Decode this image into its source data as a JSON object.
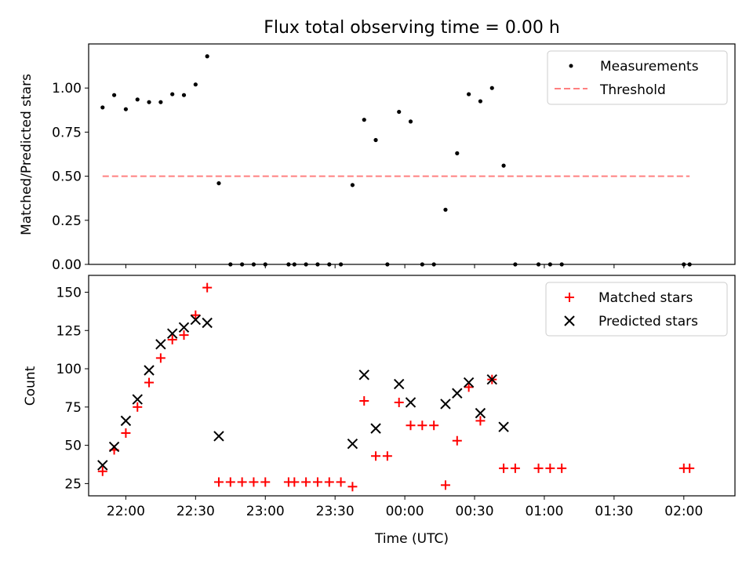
{
  "title": "Flux total observing time = 0.00 h",
  "chart_data": [
    {
      "type": "scatter",
      "ylabel": "Matched/Predicted stars",
      "xlabel": "",
      "xlim": [
        -0.6333,
        1.6833
      ],
      "ylim": [
        0.0,
        1.25
      ],
      "x_ticks": [
        -0.5,
        -0.25,
        0,
        0.25,
        0.5,
        0.75,
        1.0,
        1.25,
        1.5
      ],
      "y_ticks": [
        0.0,
        0.25,
        0.5,
        0.75,
        1.0
      ],
      "y_tick_labels": [
        "0.00",
        "0.25",
        "0.50",
        "0.75",
        "1.00"
      ],
      "legend_position": "top-right",
      "series": [
        {
          "name": "Measurements",
          "marker": "dot",
          "color": "#000000",
          "points": [
            [
              -0.5833,
              0.89
            ],
            [
              -0.5417,
              0.96
            ],
            [
              -0.5,
              0.88
            ],
            [
              -0.4583,
              0.935
            ],
            [
              -0.4167,
              0.92
            ],
            [
              -0.375,
              0.92
            ],
            [
              -0.3333,
              0.965
            ],
            [
              -0.2917,
              0.96
            ],
            [
              -0.25,
              1.02
            ],
            [
              -0.2083,
              1.18
            ],
            [
              -0.1667,
              0.46
            ],
            [
              -0.125,
              0
            ],
            [
              -0.0833,
              0
            ],
            [
              -0.0417,
              0
            ],
            [
              0.0,
              0
            ],
            [
              0.0833,
              0
            ],
            [
              0.1042,
              0
            ],
            [
              0.1458,
              0
            ],
            [
              0.1875,
              0
            ],
            [
              0.2292,
              0
            ],
            [
              0.2708,
              0
            ],
            [
              0.3125,
              0.45
            ],
            [
              0.3542,
              0.82
            ],
            [
              0.3958,
              0.705
            ],
            [
              0.4375,
              0
            ],
            [
              0.4792,
              0.865
            ],
            [
              0.5208,
              0.81
            ],
            [
              0.5625,
              0
            ],
            [
              0.6042,
              0
            ],
            [
              0.6458,
              0.31
            ],
            [
              0.6875,
              0.63
            ],
            [
              0.7292,
              0.965
            ],
            [
              0.7708,
              0.925
            ],
            [
              0.8125,
              1.0
            ],
            [
              0.8542,
              0.56
            ],
            [
              0.8958,
              0
            ],
            [
              0.9792,
              0
            ],
            [
              1.0208,
              0
            ],
            [
              1.0625,
              0
            ],
            [
              1.5,
              0
            ],
            [
              1.5208,
              0
            ]
          ]
        },
        {
          "name": "Threshold",
          "marker": "dashed-line",
          "color": "#ff8080",
          "points": [
            [
              -0.5833,
              0.5
            ],
            [
              1.5208,
              0.5
            ]
          ]
        }
      ]
    },
    {
      "type": "scatter",
      "ylabel": "Count",
      "xlabel": "Time (UTC)",
      "xlim": [
        -0.6333,
        1.6833
      ],
      "ylim": [
        17,
        161
      ],
      "x_ticks": [
        -0.5,
        -0.25,
        0,
        0.25,
        0.5,
        0.75,
        1.0,
        1.25,
        1.5
      ],
      "x_tick_labels": [
        "22:00",
        "22:30",
        "23:00",
        "23:30",
        "00:00",
        "00:30",
        "01:00",
        "01:30",
        "02:00"
      ],
      "y_ticks": [
        25,
        50,
        75,
        100,
        125,
        150
      ],
      "y_tick_labels": [
        "25",
        "50",
        "75",
        "100",
        "125",
        "150"
      ],
      "legend_position": "top-right",
      "series": [
        {
          "name": "Matched stars",
          "marker": "plus",
          "color": "#ff0000",
          "points": [
            [
              -0.5833,
              33
            ],
            [
              -0.5417,
              47
            ],
            [
              -0.5,
              58
            ],
            [
              -0.4583,
              75
            ],
            [
              -0.4167,
              91
            ],
            [
              -0.375,
              107
            ],
            [
              -0.3333,
              119
            ],
            [
              -0.2917,
              122
            ],
            [
              -0.25,
              135
            ],
            [
              -0.2083,
              153
            ],
            [
              -0.1667,
              26
            ],
            [
              -0.125,
              26
            ],
            [
              -0.0833,
              26
            ],
            [
              -0.0417,
              26
            ],
            [
              0.0,
              26
            ],
            [
              0.0833,
              26
            ],
            [
              0.1042,
              26
            ],
            [
              0.1458,
              26
            ],
            [
              0.1875,
              26
            ],
            [
              0.2292,
              26
            ],
            [
              0.2708,
              26
            ],
            [
              0.3125,
              23
            ],
            [
              0.3542,
              79
            ],
            [
              0.3958,
              43
            ],
            [
              0.4375,
              43
            ],
            [
              0.4792,
              78
            ],
            [
              0.5208,
              63
            ],
            [
              0.5625,
              63
            ],
            [
              0.6042,
              63
            ],
            [
              0.6458,
              24
            ],
            [
              0.6875,
              53
            ],
            [
              0.7292,
              88
            ],
            [
              0.7708,
              66
            ],
            [
              0.8125,
              93
            ],
            [
              0.8542,
              35
            ],
            [
              0.8958,
              35
            ],
            [
              0.9792,
              35
            ],
            [
              1.0208,
              35
            ],
            [
              1.0625,
              35
            ],
            [
              1.5,
              35
            ],
            [
              1.5208,
              35
            ]
          ]
        },
        {
          "name": "Predicted stars",
          "marker": "x",
          "color": "#000000",
          "points": [
            [
              -0.5833,
              37
            ],
            [
              -0.5417,
              49
            ],
            [
              -0.5,
              66
            ],
            [
              -0.4583,
              80
            ],
            [
              -0.4167,
              99
            ],
            [
              -0.375,
              116
            ],
            [
              -0.3333,
              123
            ],
            [
              -0.2917,
              127
            ],
            [
              -0.25,
              132
            ],
            [
              -0.2083,
              130
            ],
            [
              -0.1667,
              56
            ],
            [
              0.3125,
              51
            ],
            [
              0.3542,
              96
            ],
            [
              0.3958,
              61
            ],
            [
              0.4792,
              90
            ],
            [
              0.5208,
              78
            ],
            [
              0.6458,
              77
            ],
            [
              0.6875,
              84
            ],
            [
              0.7292,
              91
            ],
            [
              0.7708,
              71
            ],
            [
              0.8125,
              93
            ],
            [
              0.8542,
              62
            ]
          ]
        }
      ]
    }
  ]
}
